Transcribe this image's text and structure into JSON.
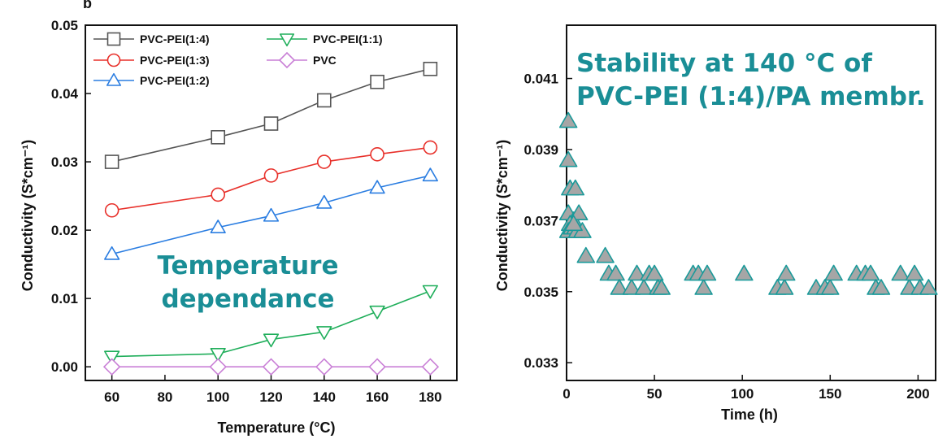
{
  "colors": {
    "annotation": "#1a8e96",
    "stability_marker": "#1a9a9a",
    "stability_fill": "#a6a6a6"
  },
  "chart_data": [
    {
      "type": "line",
      "panel_letter": "b",
      "title": "",
      "xlabel": "Temperature (°C)",
      "ylabel": "Conductivity (S*cm⁻¹)",
      "xlim": [
        50,
        190
      ],
      "ylim": [
        -0.002,
        0.05
      ],
      "xticks": [
        "60",
        "80",
        "100",
        "120",
        "140",
        "160",
        "180"
      ],
      "yticks": [
        "0.00",
        "0.01",
        "0.02",
        "0.03",
        "0.04",
        "0.05"
      ],
      "grid": false,
      "legend_position": "top-left",
      "annotation": [
        "Temperature",
        "dependance"
      ],
      "x": [
        60,
        100,
        120,
        140,
        160,
        180
      ],
      "series": [
        {
          "name": "PVC-PEI(1:4)",
          "marker": "square",
          "color": "#555555",
          "values": [
            0.03,
            0.0336,
            0.0356,
            0.039,
            0.0417,
            0.0436
          ]
        },
        {
          "name": "PVC-PEI(1:3)",
          "marker": "circle",
          "color": "#e8302a",
          "values": [
            0.0229,
            0.0252,
            0.028,
            0.03,
            0.0311,
            0.0321
          ]
        },
        {
          "name": "PVC-PEI(1:2)",
          "marker": "triangle-up",
          "color": "#2a7de1",
          "values": [
            0.0165,
            0.0204,
            0.0221,
            0.024,
            0.0262,
            0.028
          ]
        },
        {
          "name": "PVC-PEI(1:1)",
          "marker": "triangle-down",
          "color": "#1fae5a",
          "values": [
            0.0015,
            0.0019,
            0.004,
            0.0051,
            0.0081,
            0.0111
          ]
        },
        {
          "name": "PVC",
          "marker": "diamond",
          "color": "#c97fd6",
          "values": [
            0.0,
            0.0,
            0.0,
            0.0,
            0.0,
            0.0
          ]
        }
      ]
    },
    {
      "type": "scatter",
      "title": "",
      "xlabel": "Time (h)",
      "ylabel": "Conductivity (S*cm⁻¹)",
      "xlim": [
        0,
        210
      ],
      "ylim": [
        0.0325,
        0.0425
      ],
      "xticks": [
        "0",
        "50",
        "100",
        "150",
        "200"
      ],
      "yticks": [
        "0.033",
        "0.035",
        "0.037",
        "0.039",
        "0.041"
      ],
      "grid": false,
      "annotation": [
        "Stability at 140 °C of",
        "PVC-PEI (1:4)/PA membr."
      ],
      "series": [
        {
          "name": "",
          "marker": "triangle-up",
          "points": [
            [
              1,
              0.0398
            ],
            [
              1,
              0.0387
            ],
            [
              2,
              0.0379
            ],
            [
              5,
              0.0379
            ],
            [
              1,
              0.0372
            ],
            [
              4,
              0.037
            ],
            [
              7,
              0.0372
            ],
            [
              2,
              0.0369
            ],
            [
              1,
              0.0367
            ],
            [
              3,
              0.0368
            ],
            [
              5,
              0.0368
            ],
            [
              6,
              0.0367
            ],
            [
              9,
              0.0367
            ],
            [
              4,
              0.0369
            ],
            [
              11,
              0.036
            ],
            [
              22,
              0.036
            ],
            [
              24,
              0.0355
            ],
            [
              28,
              0.0355
            ],
            [
              30,
              0.0351
            ],
            [
              37,
              0.0351
            ],
            [
              40,
              0.0355
            ],
            [
              44,
              0.0351
            ],
            [
              47,
              0.0355
            ],
            [
              50,
              0.0355
            ],
            [
              52,
              0.0351
            ],
            [
              54,
              0.0351
            ],
            [
              72,
              0.0355
            ],
            [
              75,
              0.0355
            ],
            [
              78,
              0.0351
            ],
            [
              80,
              0.0355
            ],
            [
              101,
              0.0355
            ],
            [
              120,
              0.0351
            ],
            [
              124,
              0.0351
            ],
            [
              125,
              0.0355
            ],
            [
              142,
              0.0351
            ],
            [
              147,
              0.0351
            ],
            [
              150,
              0.0351
            ],
            [
              152,
              0.0355
            ],
            [
              165,
              0.0355
            ],
            [
              170,
              0.0355
            ],
            [
              173,
              0.0355
            ],
            [
              176,
              0.0351
            ],
            [
              179,
              0.0351
            ],
            [
              190,
              0.0355
            ],
            [
              195,
              0.0351
            ],
            [
              198,
              0.0355
            ],
            [
              201,
              0.0351
            ],
            [
              206,
              0.0351
            ]
          ]
        }
      ]
    }
  ]
}
